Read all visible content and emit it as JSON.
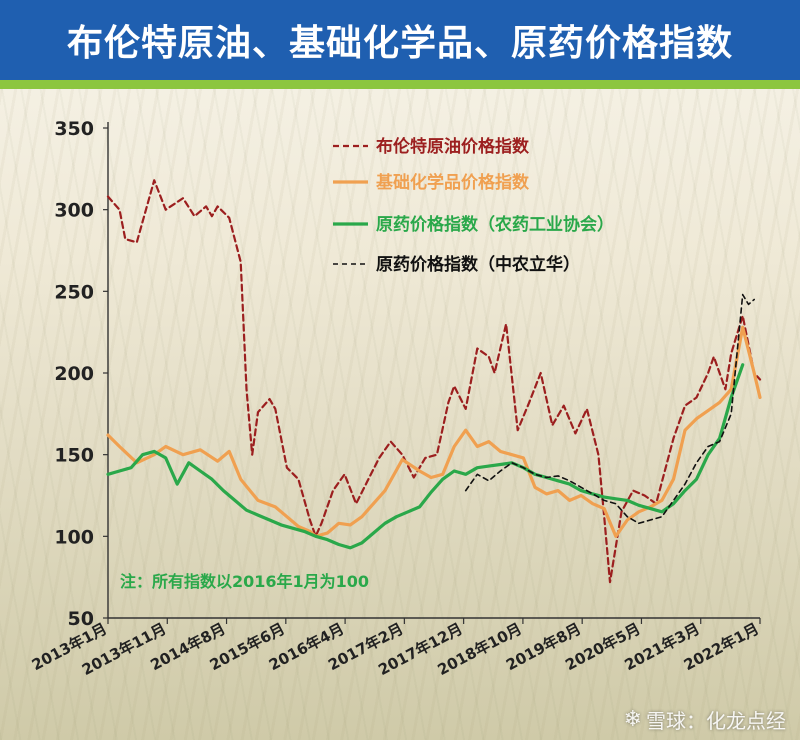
{
  "header": {
    "title": "布伦特原油、基础化学品、原药价格指数"
  },
  "watermark": {
    "icon": "snowball-logo-icon",
    "text": "雪球：化龙点经"
  },
  "colors": {
    "title_bg": "#1f5fb0",
    "accent_strip": "#8cc63f",
    "brent": "#9c1f1f",
    "chemicals": "#f0a050",
    "pesticide_ccpia": "#2aa84a",
    "pesticide_zhongnong": "#111111",
    "note": "#2aa84a"
  },
  "chart_data": {
    "type": "line",
    "title": "布伦特原油、基础化学品、原药价格指数",
    "xlabel": "",
    "ylabel": "",
    "ylim": [
      50,
      350
    ],
    "yticks": [
      50,
      100,
      150,
      200,
      250,
      300,
      350
    ],
    "grid": false,
    "legend_position": "top-right",
    "x_start": "2013-01",
    "x_end": "2022-06",
    "xtick_labels": [
      "2013年1月",
      "2013年11月",
      "2014年8月",
      "2015年6月",
      "2016年4月",
      "2017年2月",
      "2017年12月",
      "2018年10月",
      "2019年8月",
      "2020年5月",
      "2021年3月",
      "2022年1月"
    ],
    "annotation": "注：所有指数以2016年1月为100",
    "series": [
      {
        "name": "布伦特原油价格指数",
        "style": "dashed",
        "color": "#9c1f1f",
        "x": [
          "2013-01",
          "2013-03",
          "2013-04",
          "2013-06",
          "2013-09",
          "2013-11",
          "2014-02",
          "2014-04",
          "2014-06",
          "2014-07",
          "2014-08",
          "2014-10",
          "2014-12",
          "2015-01",
          "2015-02",
          "2015-03",
          "2015-05",
          "2015-06",
          "2015-08",
          "2015-10",
          "2015-12",
          "2016-01",
          "2016-02",
          "2016-04",
          "2016-06",
          "2016-08",
          "2016-10",
          "2016-12",
          "2017-02",
          "2017-04",
          "2017-06",
          "2017-08",
          "2017-10",
          "2017-12",
          "2018-01",
          "2018-03",
          "2018-05",
          "2018-07",
          "2018-08",
          "2018-10",
          "2018-12",
          "2019-02",
          "2019-04",
          "2019-06",
          "2019-08",
          "2019-10",
          "2019-12",
          "2020-02",
          "2020-03",
          "2020-04",
          "2020-06",
          "2020-08",
          "2020-10",
          "2020-12",
          "2021-03",
          "2021-05",
          "2021-07",
          "2021-09",
          "2021-10",
          "2021-12",
          "2022-01",
          "2022-03",
          "2022-05",
          "2022-06"
        ],
        "values": [
          308,
          300,
          282,
          280,
          318,
          300,
          307,
          296,
          302,
          296,
          302,
          295,
          268,
          190,
          150,
          176,
          184,
          178,
          142,
          135,
          110,
          100,
          108,
          128,
          138,
          120,
          134,
          148,
          158,
          150,
          136,
          148,
          150,
          182,
          192,
          178,
          215,
          210,
          200,
          230,
          165,
          182,
          200,
          168,
          180,
          163,
          178,
          150,
          112,
          72,
          115,
          128,
          125,
          120,
          160,
          180,
          185,
          200,
          210,
          190,
          212,
          235,
          200,
          196
        ]
      },
      {
        "name": "基础化学品价格指数",
        "style": "solid",
        "color": "#f0a050",
        "x": [
          "2013-01",
          "2013-03",
          "2013-06",
          "2013-09",
          "2013-11",
          "2014-02",
          "2014-05",
          "2014-08",
          "2014-10",
          "2014-12",
          "2015-03",
          "2015-06",
          "2015-08",
          "2015-10",
          "2015-12",
          "2016-01",
          "2016-03",
          "2016-05",
          "2016-07",
          "2016-09",
          "2016-11",
          "2017-01",
          "2017-04",
          "2017-07",
          "2017-09",
          "2017-11",
          "2018-01",
          "2018-03",
          "2018-05",
          "2018-07",
          "2018-09",
          "2018-11",
          "2019-01",
          "2019-03",
          "2019-05",
          "2019-07",
          "2019-09",
          "2019-11",
          "2020-01",
          "2020-03",
          "2020-05",
          "2020-07",
          "2020-09",
          "2020-11",
          "2021-01",
          "2021-03",
          "2021-05",
          "2021-07",
          "2021-09",
          "2021-11",
          "2022-01",
          "2022-03",
          "2022-05",
          "2022-06"
        ],
        "values": [
          162,
          155,
          145,
          150,
          155,
          150,
          153,
          146,
          152,
          135,
          122,
          118,
          112,
          106,
          103,
          100,
          102,
          108,
          107,
          112,
          120,
          128,
          147,
          140,
          136,
          138,
          155,
          165,
          155,
          158,
          152,
          150,
          148,
          130,
          126,
          128,
          122,
          125,
          120,
          117,
          100,
          110,
          115,
          118,
          122,
          135,
          165,
          172,
          177,
          182,
          190,
          228,
          200,
          185
        ]
      },
      {
        "name": "原药价格指数（农药工业协会）",
        "style": "solid",
        "color": "#2aa84a",
        "x": [
          "2013-01",
          "2013-03",
          "2013-05",
          "2013-07",
          "2013-09",
          "2013-11",
          "2014-01",
          "2014-03",
          "2014-05",
          "2014-07",
          "2014-09",
          "2014-11",
          "2015-01",
          "2015-03",
          "2015-05",
          "2015-07",
          "2015-09",
          "2015-11",
          "2016-01",
          "2016-03",
          "2016-05",
          "2016-07",
          "2016-09",
          "2016-11",
          "2017-01",
          "2017-03",
          "2017-05",
          "2017-07",
          "2017-09",
          "2017-11",
          "2018-01",
          "2018-03",
          "2018-05",
          "2018-07",
          "2018-09",
          "2018-11",
          "2019-01",
          "2019-03",
          "2019-05",
          "2019-07",
          "2019-09",
          "2019-11",
          "2020-01",
          "2020-03",
          "2020-05",
          "2020-07",
          "2020-09",
          "2020-11",
          "2021-01",
          "2021-03",
          "2021-05",
          "2021-07",
          "2021-09",
          "2021-11",
          "2022-01",
          "2022-03"
        ],
        "values": [
          138,
          140,
          142,
          150,
          152,
          148,
          132,
          145,
          140,
          135,
          128,
          122,
          116,
          113,
          110,
          107,
          105,
          103,
          100,
          98,
          95,
          93,
          96,
          102,
          108,
          112,
          115,
          118,
          127,
          135,
          140,
          138,
          142,
          143,
          144,
          145,
          142,
          138,
          136,
          134,
          132,
          128,
          126,
          124,
          123,
          122,
          119,
          117,
          115,
          120,
          128,
          135,
          150,
          160,
          185,
          205
        ]
      },
      {
        "name": "原药价格指数（中农立华）",
        "style": "dashed",
        "color": "#111111",
        "x": [
          "2018-03",
          "2018-05",
          "2018-07",
          "2018-09",
          "2018-11",
          "2019-01",
          "2019-03",
          "2019-05",
          "2019-07",
          "2019-09",
          "2019-11",
          "2020-01",
          "2020-03",
          "2020-05",
          "2020-07",
          "2020-09",
          "2020-11",
          "2021-01",
          "2021-03",
          "2021-05",
          "2021-07",
          "2021-09",
          "2021-11",
          "2022-01",
          "2022-03",
          "2022-04",
          "2022-05"
        ],
        "values": [
          128,
          138,
          134,
          140,
          145,
          142,
          138,
          136,
          137,
          134,
          130,
          126,
          122,
          120,
          112,
          108,
          110,
          112,
          122,
          132,
          145,
          155,
          158,
          175,
          248,
          242,
          245
        ]
      }
    ]
  }
}
